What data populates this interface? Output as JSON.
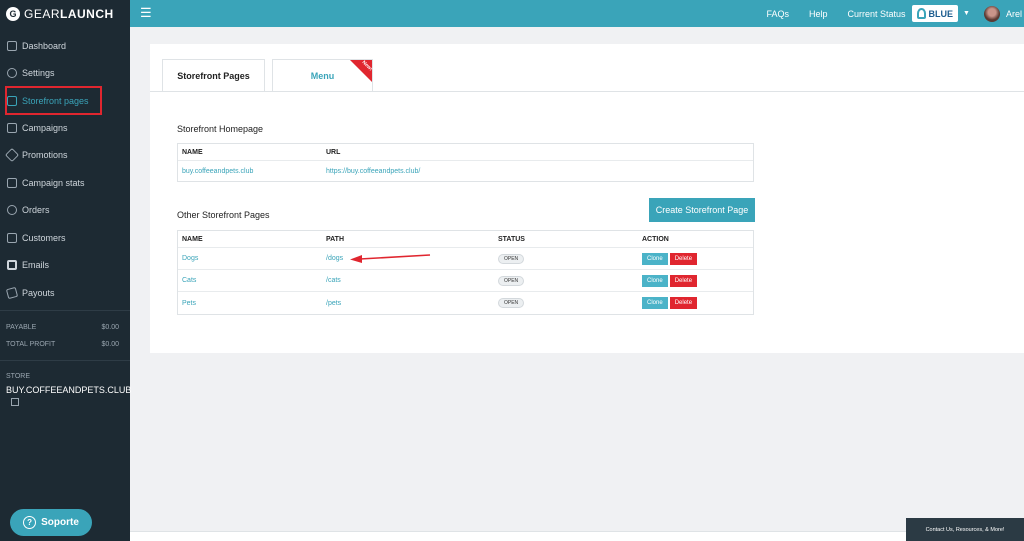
{
  "brand": {
    "name_light": "GEAR",
    "name_bold": "LAUNCH",
    "mark": "G"
  },
  "topnav": {
    "faqs": "FAQs",
    "help": "Help",
    "status_label": "Current Status",
    "status_value": "BLUE",
    "user": "Arel"
  },
  "sidebar": {
    "items": [
      {
        "label": "Dashboard",
        "icon": "dashboard-icon"
      },
      {
        "label": "Settings",
        "icon": "gear-icon"
      },
      {
        "label": "Storefront pages",
        "icon": "page-icon"
      },
      {
        "label": "Campaigns",
        "icon": "campaigns-icon"
      },
      {
        "label": "Promotions",
        "icon": "tag-icon"
      },
      {
        "label": "Campaign stats",
        "icon": "chart-icon"
      },
      {
        "label": "Orders",
        "icon": "orders-icon"
      },
      {
        "label": "Customers",
        "icon": "customers-icon"
      },
      {
        "label": "Emails",
        "icon": "email-icon"
      },
      {
        "label": "Payouts",
        "icon": "payouts-icon"
      }
    ],
    "payable_label": "PAYABLE",
    "payable_value": "$0.00",
    "total_profit_label": "TOTAL PROFIT",
    "total_profit_value": "$0.00",
    "store_label": "STORE",
    "store_name": "BUY.COFFEEANDPETS.CLUB",
    "support": "Soporte"
  },
  "tabs": {
    "storefront": "Storefront Pages",
    "menu": "Menu",
    "new_badge": "New!"
  },
  "homepage": {
    "title": "Storefront Homepage",
    "col_name": "NAME",
    "col_url": "URL",
    "name": "buy.coffeeandpets.club",
    "url": "https://buy.coffeeandpets.club/"
  },
  "other": {
    "title": "Other Storefront Pages",
    "create_button": "Create Storefront Page",
    "col_name": "NAME",
    "col_path": "PATH",
    "col_status": "STATUS",
    "col_action": "ACTION",
    "clone_label": "Clone",
    "delete_label": "Delete",
    "rows": [
      {
        "name": "Dogs",
        "path": "/dogs",
        "status": "OPEN"
      },
      {
        "name": "Cats",
        "path": "/cats",
        "status": "OPEN"
      },
      {
        "name": "Pets",
        "path": "/pets",
        "status": "OPEN"
      }
    ]
  },
  "help_widget": "Contact Us, Resources, & More!",
  "colors": {
    "accent": "#3aa4b9",
    "sidebar": "#1d2a33",
    "danger": "#e0262f"
  }
}
